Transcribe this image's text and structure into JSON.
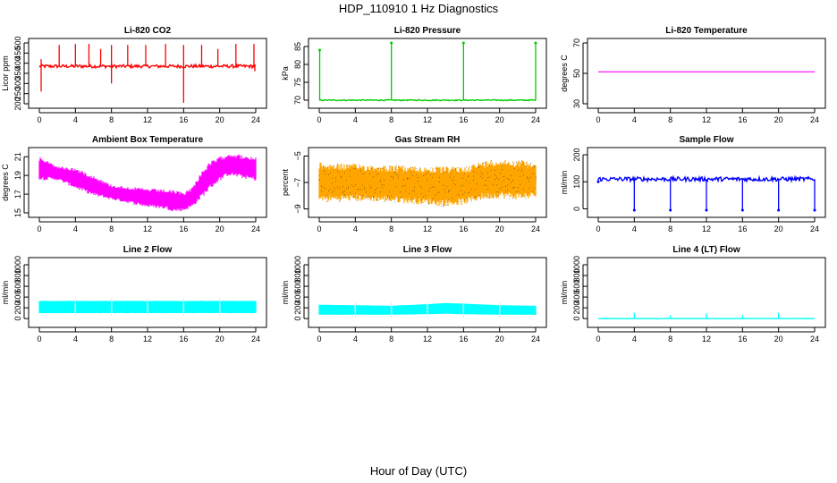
{
  "page": {
    "title": "HDP_110910  1 Hz Diagnostics",
    "xlabel": "Hour of Day (UTC)"
  },
  "colors": {
    "co2": "#ff0000",
    "pressure": "#00cc00",
    "temp": "#ff00ff",
    "ambient": "#ff00ff",
    "rh": "#ffa500",
    "rh_dots": "#000000",
    "flow": "#0000ff",
    "line": "#00ffff"
  },
  "chart_data": [
    {
      "id": "co2",
      "type": "line",
      "title": "Li-820 CO2",
      "ylabel": "Licor ppm",
      "xlabel": "",
      "xlim": [
        0,
        24
      ],
      "ylim": [
        200,
        500
      ],
      "xticks": [
        0,
        4,
        8,
        12,
        16,
        20,
        24
      ],
      "yticks": [
        200,
        250,
        300,
        350,
        400,
        450,
        500
      ],
      "color_key": "co2",
      "baseline": 385,
      "noise": 8,
      "spikes_up": [
        [
          0.2,
          420
        ],
        [
          2.2,
          490
        ],
        [
          4.0,
          495
        ],
        [
          5.5,
          495
        ],
        [
          6.8,
          470
        ],
        [
          8.0,
          490
        ],
        [
          9.8,
          490
        ],
        [
          11.8,
          490
        ],
        [
          14.0,
          495
        ],
        [
          16.0,
          490
        ],
        [
          18.0,
          490
        ],
        [
          19.8,
          470
        ],
        [
          21.8,
          495
        ],
        [
          23.8,
          495
        ]
      ],
      "spikes_down": [
        [
          0.2,
          260
        ],
        [
          8.0,
          300
        ],
        [
          16.0,
          205
        ],
        [
          23.9,
          360
        ]
      ],
      "series": [
        {
          "name": "Li-820 CO2",
          "values_note": "1 Hz noisy trace around baseline"
        }
      ]
    },
    {
      "id": "pressure",
      "type": "line",
      "title": "Li-820 Pressure",
      "ylabel": "kPa",
      "xlabel": "",
      "xlim": [
        0,
        24
      ],
      "ylim": [
        69,
        86
      ],
      "xticks": [
        0,
        4,
        8,
        12,
        16,
        20,
        24
      ],
      "yticks": [
        70,
        75,
        80,
        85
      ],
      "color_key": "pressure",
      "baseline": 70,
      "noise": 0.15,
      "spikes_up": [
        [
          0.05,
          84
        ],
        [
          8.0,
          86
        ],
        [
          16.0,
          86
        ],
        [
          24.0,
          86
        ]
      ],
      "spikes_down": [],
      "series": [
        {
          "name": "Li-820 Pressure",
          "values_note": "flat ~70 kPa with spikes"
        }
      ]
    },
    {
      "id": "temp",
      "type": "line",
      "title": "Li-820 Temperature",
      "ylabel": "degrees C",
      "xlabel": "",
      "xlim": [
        0,
        24
      ],
      "ylim": [
        30,
        70
      ],
      "xticks": [
        0,
        4,
        8,
        12,
        16,
        20,
        24
      ],
      "yticks": [
        30,
        50,
        70
      ],
      "color_key": "temp",
      "x": [
        0,
        24
      ],
      "y": [
        51,
        51
      ],
      "series": [
        {
          "name": "Li-820 Temperature",
          "values": [
            51,
            51
          ]
        }
      ]
    },
    {
      "id": "ambient",
      "type": "area",
      "title": "Ambient Box Temperature",
      "ylabel": "degrees C",
      "xlabel": "",
      "xlim": [
        0,
        24
      ],
      "ylim": [
        15,
        21.5
      ],
      "xticks": [
        0,
        4,
        8,
        12,
        16,
        20,
        24
      ],
      "yticks": [
        15,
        17,
        19,
        21
      ],
      "color_key": "ambient",
      "x": [
        0,
        2,
        4,
        6,
        8,
        10,
        12,
        14,
        15,
        16,
        17,
        18,
        19,
        20,
        21,
        22,
        23,
        24
      ],
      "upper": [
        21.0,
        20.0,
        19.8,
        19.0,
        18.0,
        17.8,
        17.6,
        17.5,
        17.4,
        17.2,
        17.8,
        19.5,
        20.5,
        21.0,
        21.4,
        21.3,
        21.0,
        21.0
      ],
      "lower": [
        18.5,
        18.5,
        17.6,
        16.8,
        16.4,
        16.0,
        15.6,
        15.4,
        15.1,
        15.2,
        15.6,
        16.6,
        17.6,
        18.4,
        19.0,
        18.8,
        18.6,
        18.4
      ],
      "series": [
        {
          "name": "Ambient Box Temperature",
          "values_note": "band between upper and lower envelope"
        }
      ]
    },
    {
      "id": "rh",
      "type": "area",
      "title": "Gas Stream RH",
      "ylabel": "percent",
      "xlabel": "",
      "xlim": [
        0,
        24
      ],
      "ylim": [
        -9.3,
        -4.7
      ],
      "xticks": [
        0,
        4,
        8,
        12,
        16,
        20,
        24
      ],
      "yticks": [
        -9,
        -7,
        -5
      ],
      "color_key": "rh",
      "x": [
        0,
        4,
        8,
        12,
        14,
        16,
        18,
        20,
        22,
        24
      ],
      "upper": [
        -5.5,
        -5.6,
        -5.7,
        -5.8,
        -5.8,
        -5.8,
        -5.4,
        -5.2,
        -5.3,
        -5.4
      ],
      "lower": [
        -8.5,
        -8.4,
        -8.5,
        -8.7,
        -8.8,
        -8.7,
        -8.3,
        -8.2,
        -8.3,
        -8.2
      ],
      "series": [
        {
          "name": "Gas Stream RH",
          "values_note": "noisy band between envelopes"
        }
      ]
    },
    {
      "id": "flow",
      "type": "line",
      "title": "Sample Flow",
      "ylabel": "ml/min",
      "xlabel": "",
      "xlim": [
        0,
        24
      ],
      "ylim": [
        -15,
        210
      ],
      "xticks": [
        0,
        4,
        8,
        12,
        16,
        20,
        24
      ],
      "yticks": [
        0,
        100,
        200
      ],
      "color_key": "flow",
      "baseline": 110,
      "noise": 8,
      "spikes_down": [
        [
          0.0,
          100
        ],
        [
          4.0,
          -5
        ],
        [
          8.0,
          -5
        ],
        [
          12.0,
          -5
        ],
        [
          16.0,
          -5
        ],
        [
          20.0,
          -5
        ],
        [
          24.0,
          -5
        ]
      ],
      "spikes_up": [],
      "series": [
        {
          "name": "Sample Flow",
          "values_note": "~110 ml/min with dropouts every 4 h"
        }
      ]
    },
    {
      "id": "line2",
      "type": "area",
      "title": "Line 2 Flow",
      "ylabel": "ml/min",
      "xlabel": "",
      "xlim": [
        0,
        24
      ],
      "ylim": [
        -80,
        1050
      ],
      "xticks": [
        0,
        4,
        8,
        12,
        16,
        20,
        24
      ],
      "yticks": [
        0,
        200,
        400,
        600,
        800,
        1000
      ],
      "color_key": "line",
      "x": [
        0,
        24
      ],
      "upper": [
        330,
        330
      ],
      "lower": [
        100,
        100
      ],
      "gaps": [
        4,
        8,
        12,
        16,
        20
      ],
      "series": [
        {
          "name": "Line 2 Flow",
          "values_note": "band 100–330 ml/min"
        }
      ]
    },
    {
      "id": "line3",
      "type": "area",
      "title": "Line 3 Flow",
      "ylabel": "ml/min",
      "xlabel": "",
      "xlim": [
        0,
        24
      ],
      "ylim": [
        -80,
        1050
      ],
      "xticks": [
        0,
        4,
        8,
        12,
        16,
        20,
        24
      ],
      "yticks": [
        0,
        200,
        400,
        600,
        800,
        1000
      ],
      "color_key": "line",
      "x": [
        0,
        4,
        8,
        12,
        14,
        16,
        20,
        24
      ],
      "upper": [
        260,
        250,
        240,
        270,
        290,
        280,
        250,
        240
      ],
      "lower": [
        70,
        70,
        70,
        80,
        90,
        80,
        70,
        70
      ],
      "gaps": [
        4,
        8,
        12,
        16,
        20
      ],
      "series": [
        {
          "name": "Line 3 Flow",
          "values_note": "band ~70–280 ml/min"
        }
      ]
    },
    {
      "id": "line4",
      "type": "line",
      "title": "Line 4 (LT) Flow",
      "ylabel": "ml/min",
      "xlabel": "",
      "xlim": [
        0,
        24
      ],
      "ylim": [
        -80,
        1050
      ],
      "xticks": [
        0,
        4,
        8,
        12,
        16,
        20,
        24
      ],
      "yticks": [
        0,
        200,
        400,
        600,
        800,
        1000
      ],
      "color_key": "line",
      "baseline": 0,
      "noise": 2,
      "spikes_up": [
        [
          4.0,
          110
        ],
        [
          8.0,
          60
        ],
        [
          12.0,
          100
        ],
        [
          16.0,
          60
        ],
        [
          20.0,
          110
        ]
      ],
      "spikes_down": [],
      "series": [
        {
          "name": "Line 4 (LT) Flow",
          "values_note": "~0 ml/min with spikes"
        }
      ]
    }
  ]
}
